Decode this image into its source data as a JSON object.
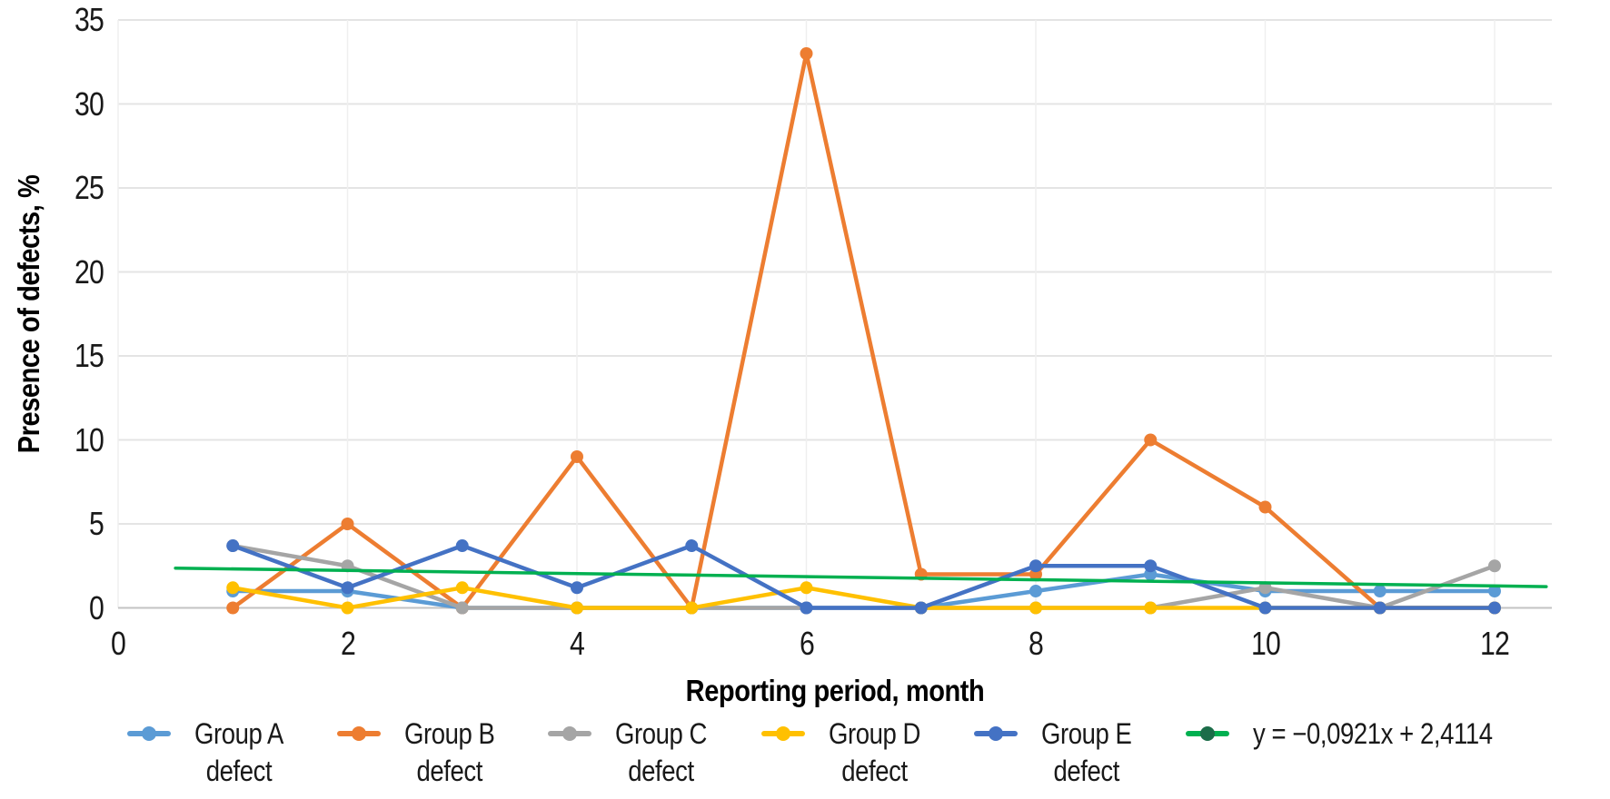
{
  "chart_data": {
    "type": "line",
    "title": "",
    "xlabel": "Reporting period, month",
    "ylabel": "Presence of defects, %",
    "xlim": [
      0,
      12.5
    ],
    "ylim": [
      0,
      35
    ],
    "x_ticks": [
      0,
      2,
      4,
      6,
      8,
      10,
      12
    ],
    "y_ticks": [
      0,
      5,
      10,
      15,
      20,
      25,
      30,
      35
    ],
    "grid": true,
    "legend_position": "bottom",
    "x": [
      1,
      2,
      3,
      4,
      5,
      6,
      7,
      8,
      9,
      10,
      11,
      12
    ],
    "series": [
      {
        "name": "Group A defect",
        "color": "#5B9BD5",
        "values": [
          1,
          1,
          0,
          0,
          0,
          0,
          0,
          1,
          2,
          1,
          1,
          1
        ]
      },
      {
        "name": "Group B defect",
        "color": "#ED7D31",
        "values": [
          0,
          5,
          0,
          9,
          0,
          33,
          2,
          2,
          10,
          6,
          0,
          0
        ]
      },
      {
        "name": "Group C defect",
        "color": "#A5A5A5",
        "values": [
          3.7,
          2.5,
          0,
          0,
          0,
          0,
          0,
          0,
          0,
          1.2,
          0,
          2.5
        ]
      },
      {
        "name": "Group D defect",
        "color": "#FFC000",
        "values": [
          1.2,
          0,
          1.2,
          0,
          0,
          1.2,
          0,
          0,
          0,
          0,
          0,
          0
        ]
      },
      {
        "name": "Group E defect",
        "color": "#4472C4",
        "values": [
          3.7,
          1.2,
          3.7,
          1.2,
          3.7,
          0,
          0,
          2.5,
          2.5,
          0,
          0,
          0
        ]
      }
    ],
    "trendline": {
      "label": "y = −0,0921x + 2,4114",
      "slope": -0.0921,
      "intercept": 2.4114,
      "x_start": 0.5,
      "x_end": 12.45,
      "color": "#00B050",
      "marker_color": "#1C6D49"
    }
  },
  "axes": {
    "x_title": "Reporting period, month",
    "y_title": "Presence of defects, %"
  },
  "legend": {
    "items": [
      {
        "line1": "Group A",
        "line2": "defect",
        "color": "#5B9BD5",
        "marker_color": "#5B9BD5"
      },
      {
        "line1": "Group B",
        "line2": "defect",
        "color": "#ED7D31",
        "marker_color": "#ED7D31"
      },
      {
        "line1": "Group C",
        "line2": "defect",
        "color": "#A5A5A5",
        "marker_color": "#A5A5A5"
      },
      {
        "line1": "Group D",
        "line2": "defect",
        "color": "#FFC000",
        "marker_color": "#FFC000"
      },
      {
        "line1": "Group E",
        "line2": "defect",
        "color": "#4472C4",
        "marker_color": "#4472C4"
      },
      {
        "line1": "y = −0,0921x + 2,4114",
        "line2": "",
        "color": "#00B050",
        "marker_color": "#1C6D49"
      }
    ]
  },
  "style": {
    "grid_color_h": "#E4E4E4",
    "grid_color_v": "#EFEFEF",
    "axis_line_color": "#C3C3C3"
  }
}
